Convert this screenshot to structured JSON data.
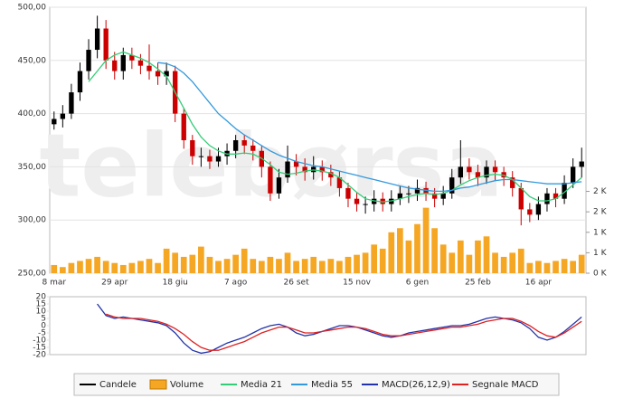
{
  "watermark": "telebørsa",
  "chart_data": [
    {
      "type": "candlestick",
      "categories": [
        "8 mar",
        null,
        null,
        null,
        null,
        null,
        null,
        "29 apr",
        null,
        null,
        null,
        null,
        null,
        null,
        "18 giu",
        null,
        null,
        null,
        null,
        null,
        null,
        "7 ago",
        null,
        null,
        null,
        null,
        null,
        null,
        "26 set",
        null,
        null,
        null,
        null,
        null,
        null,
        "15 nov",
        null,
        null,
        null,
        null,
        null,
        null,
        "6 gen",
        null,
        null,
        null,
        null,
        null,
        null,
        "25 feb",
        null,
        null,
        null,
        null,
        null,
        null,
        "16 apr",
        null,
        null,
        null,
        null,
        null
      ],
      "ylim": [
        250,
        500
      ],
      "yticks": [
        {
          "value": 250,
          "label": "250,00"
        },
        {
          "value": 300,
          "label": "300,00"
        },
        {
          "value": 350,
          "label": "350,00"
        },
        {
          "value": 400,
          "label": "400,00"
        },
        {
          "value": 450,
          "label": "450,00"
        },
        {
          "value": 500,
          "label": "500,00"
        }
      ],
      "y2lim": [
        0,
        6500
      ],
      "y2ticks": [
        {
          "value": 0,
          "label": "0 K"
        },
        {
          "value": 500,
          "label": "1 K"
        },
        {
          "value": 1000,
          "label": "1 K"
        },
        {
          "value": 1500,
          "label": "2 K"
        },
        {
          "value": 2000,
          "label": "2 K"
        }
      ],
      "grid": true,
      "series": [
        {
          "name": "Candele",
          "type": "candlestick",
          "color": "#000000",
          "down_color": "#cc0000",
          "open": [
            390,
            395,
            400,
            420,
            440,
            460,
            480,
            450,
            440,
            455,
            450,
            445,
            440,
            435,
            440,
            400,
            375,
            360,
            360,
            355,
            360,
            365,
            375,
            370,
            365,
            350,
            325,
            340,
            355,
            350,
            345,
            350,
            345,
            340,
            330,
            320,
            315,
            315,
            320,
            315,
            320,
            325,
            325,
            330,
            325,
            320,
            325,
            340,
            350,
            345,
            340,
            350,
            345,
            340,
            330,
            310,
            305,
            315,
            325,
            320,
            335,
            350
          ],
          "high": [
            402,
            408,
            428,
            448,
            470,
            492,
            488,
            458,
            462,
            462,
            456,
            465,
            448,
            448,
            445,
            405,
            380,
            368,
            366,
            368,
            372,
            380,
            380,
            376,
            370,
            355,
            348,
            370,
            362,
            358,
            360,
            356,
            352,
            346,
            335,
            326,
            322,
            328,
            326,
            328,
            332,
            332,
            338,
            336,
            330,
            332,
            348,
            375,
            358,
            352,
            356,
            356,
            350,
            346,
            335,
            316,
            322,
            330,
            330,
            342,
            358,
            368
          ],
          "low": [
            385,
            387,
            395,
            412,
            432,
            452,
            442,
            432,
            432,
            442,
            437,
            432,
            427,
            427,
            392,
            367,
            352,
            350,
            348,
            350,
            352,
            358,
            362,
            356,
            340,
            318,
            320,
            335,
            342,
            337,
            338,
            337,
            332,
            322,
            312,
            308,
            306,
            308,
            308,
            308,
            314,
            316,
            318,
            318,
            312,
            314,
            320,
            334,
            338,
            332,
            334,
            337,
            332,
            322,
            295,
            298,
            300,
            308,
            312,
            315,
            330,
            340
          ],
          "close": [
            395,
            400,
            420,
            440,
            460,
            480,
            450,
            440,
            455,
            450,
            445,
            440,
            435,
            440,
            400,
            375,
            360,
            360,
            355,
            360,
            365,
            375,
            370,
            365,
            350,
            325,
            340,
            355,
            350,
            345,
            350,
            345,
            340,
            330,
            320,
            315,
            315,
            320,
            315,
            320,
            325,
            325,
            330,
            325,
            320,
            325,
            340,
            350,
            345,
            340,
            350,
            345,
            340,
            330,
            310,
            305,
            315,
            325,
            320,
            335,
            350,
            355
          ]
        },
        {
          "name": "Volume",
          "type": "bar",
          "axis": "y2",
          "color": "#f5a623",
          "values": [
            200,
            150,
            250,
            300,
            350,
            400,
            300,
            250,
            200,
            250,
            300,
            350,
            250,
            600,
            500,
            400,
            450,
            650,
            400,
            300,
            350,
            450,
            600,
            350,
            300,
            400,
            350,
            500,
            300,
            350,
            400,
            300,
            350,
            300,
            400,
            450,
            500,
            700,
            600,
            1000,
            1100,
            800,
            1200,
            1600,
            1100,
            700,
            500,
            800,
            450,
            800,
            900,
            500,
            400,
            500,
            600,
            250,
            300,
            250,
            300,
            350,
            300,
            450
          ]
        },
        {
          "name": "Media 21",
          "type": "line",
          "color": "#33cc77",
          "values": [
            null,
            null,
            null,
            null,
            430,
            440,
            450,
            455,
            458,
            455,
            452,
            448,
            442,
            435,
            420,
            405,
            390,
            378,
            370,
            365,
            362,
            362,
            363,
            362,
            358,
            352,
            345,
            343,
            344,
            346,
            347,
            346,
            344,
            340,
            333,
            326,
            320,
            318,
            317,
            318,
            320,
            322,
            324,
            325,
            324,
            325,
            328,
            333,
            337,
            340,
            342,
            343,
            342,
            338,
            330,
            322,
            318,
            318,
            320,
            326,
            333,
            340
          ]
        },
        {
          "name": "Media 55",
          "type": "line",
          "color": "#3399dd",
          "values": [
            null,
            null,
            null,
            null,
            null,
            null,
            null,
            null,
            null,
            null,
            null,
            null,
            448,
            447,
            444,
            438,
            430,
            420,
            410,
            400,
            393,
            386,
            380,
            375,
            370,
            365,
            361,
            358,
            355,
            353,
            351,
            350,
            348,
            346,
            344,
            342,
            340,
            338,
            336,
            334,
            332,
            330,
            329,
            328,
            327,
            327,
            328,
            330,
            331,
            333,
            335,
            337,
            338,
            338,
            337,
            336,
            335,
            334,
            334,
            334,
            335,
            336
          ]
        }
      ]
    },
    {
      "type": "line",
      "ylim": [
        -20,
        20
      ],
      "yticks": [
        -20,
        -15,
        -10,
        -5,
        0,
        5,
        10,
        15,
        20
      ],
      "series": [
        {
          "name": "MACD(26,12,9)",
          "color": "#2233aa",
          "values": [
            null,
            null,
            null,
            null,
            null,
            15,
            7,
            5,
            6,
            5,
            4,
            3,
            2,
            0,
            -5,
            -12,
            -17,
            -19,
            -18,
            -15,
            -12,
            -10,
            -8,
            -5,
            -2,
            0,
            1,
            -1,
            -5,
            -7,
            -6,
            -4,
            -2,
            0,
            0,
            -1,
            -3,
            -5,
            -7,
            -8,
            -7,
            -5,
            -4,
            -3,
            -2,
            -1,
            0,
            0,
            1,
            3,
            5,
            6,
            5,
            4,
            2,
            -2,
            -8,
            -10,
            -8,
            -4,
            1,
            6
          ]
        },
        {
          "name": "Segnale MACD",
          "color": "#dd2222",
          "values": [
            null,
            null,
            null,
            null,
            null,
            null,
            8,
            6,
            5,
            5,
            5,
            4,
            3,
            1,
            -2,
            -6,
            -11,
            -15,
            -17,
            -17,
            -15,
            -13,
            -11,
            -8,
            -5,
            -3,
            -1,
            -1,
            -3,
            -5,
            -5,
            -4,
            -3,
            -2,
            -1,
            -1,
            -2,
            -4,
            -6,
            -7,
            -7,
            -6,
            -5,
            -4,
            -3,
            -2,
            -1,
            -1,
            0,
            1,
            3,
            4,
            5,
            5,
            3,
            0,
            -4,
            -7,
            -8,
            -5,
            -1,
            3
          ]
        }
      ]
    }
  ]
}
